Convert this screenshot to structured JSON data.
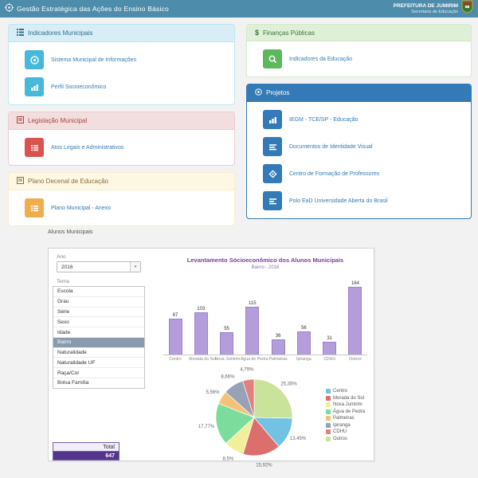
{
  "header": {
    "title": "Gestão Estratégica das Ações do Ensino Básico",
    "org_name": "PREFEITURA DE JUMIRIM",
    "org_sub": "Secretaria de Educação"
  },
  "panels": {
    "indicadores": {
      "title": "Indicadores Municipais",
      "items": [
        {
          "label": "Sistema Municipal de Informações"
        },
        {
          "label": "Perfil Socioeconômico"
        }
      ]
    },
    "legislacao": {
      "title": "Legislação Municipal",
      "items": [
        {
          "label": "Atos Legais e Administrativos"
        }
      ]
    },
    "plano": {
      "title": "Plano Decenal de Educação",
      "items": [
        {
          "label": "Plano Municipal - Anexo"
        }
      ]
    },
    "financas": {
      "title": "Finanças Públicas",
      "items": [
        {
          "label": "Indicadores da Educação"
        }
      ]
    },
    "projetos": {
      "title": "Projetos",
      "items": [
        {
          "label": "IEGM - TCE/SP - Educação"
        },
        {
          "label": "Documentos de Identidade Visual"
        },
        {
          "label": "Centro de Formação de Professores"
        },
        {
          "label": "Polo EaD Universidade Aberta do Brasil"
        }
      ]
    }
  },
  "alunos": {
    "section_title": "Alunos Municipais",
    "ano_label": "Ano",
    "ano_value": "2016",
    "tema_label": "Tema",
    "tema_options": [
      "Escola",
      "Grau",
      "Série",
      "Sexo",
      "Idade",
      "Bairro",
      "Naturalidade",
      "Naturalidade UF",
      "Raça/Cor",
      "Bolsa Família"
    ],
    "tema_selected": "Bairro",
    "total_label": "Total",
    "total_value": "647"
  },
  "chart_data": [
    {
      "type": "bar",
      "title": "Levantamento Sócioeconômico dos Alunos Municipais",
      "subtitle": "Bairro - 2016",
      "categories": [
        "Centro",
        "Morada do Sol",
        "Nova Jumirim",
        "Água de Pedra",
        "Palmeiras",
        "Ipiranga",
        "CDHU",
        "Outros"
      ],
      "values": [
        87,
        103,
        55,
        115,
        36,
        56,
        31,
        164
      ],
      "bar_color": "#b49ddb",
      "ylim": [
        0,
        164
      ],
      "grid": false,
      "legend_position": "none"
    },
    {
      "type": "pie",
      "total": 647,
      "slices_clockwise_from_top": [
        {
          "label": "Outros",
          "value": 164,
          "pct_label": "25,35%",
          "color": "#c9e39b"
        },
        {
          "label": "Centro",
          "value": 87,
          "pct_label": "13,45%",
          "color": "#72c2e3"
        },
        {
          "label": "Morada do Sol",
          "value": 103,
          "pct_label": "15,92%",
          "color": "#dd6e6e"
        },
        {
          "label": "Nova Jumirim",
          "value": 55,
          "pct_label": "8,5%",
          "color": "#f2ef9a"
        },
        {
          "label": "Água de Pedra",
          "value": 115,
          "pct_label": "17,77%",
          "color": "#7cdc9c"
        },
        {
          "label": "Palmeiras",
          "value": 36,
          "pct_label": "5,56%",
          "color": "#f4c277"
        },
        {
          "label": "Ipiranga",
          "value": 56,
          "pct_label": "8,66%",
          "color": "#97a2b6"
        },
        {
          "label": "CDHU",
          "value": 31,
          "pct_label": "4,79%",
          "color": "#e27f7f"
        }
      ],
      "legend_order": [
        "Centro",
        "Morada do Sol",
        "Nova Jumirim",
        "Água de Pedra",
        "Palmeiras",
        "Ipiranga",
        "CDHU",
        "Outros"
      ],
      "legend_position": "right"
    }
  ]
}
